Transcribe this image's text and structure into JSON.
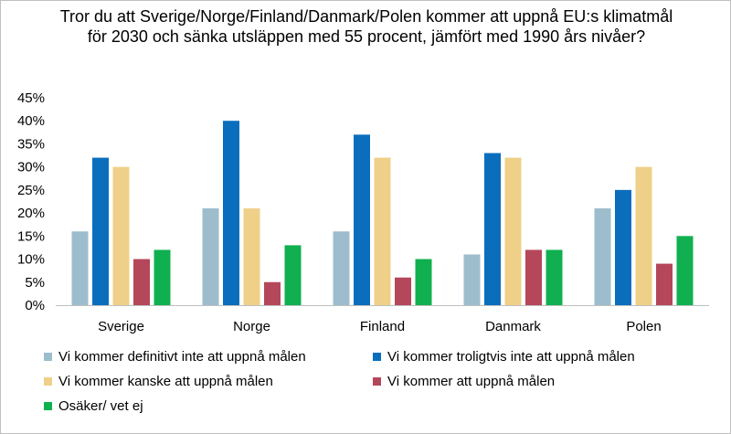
{
  "chart_data": {
    "type": "bar",
    "title": "Tror du att Sverige/Norge/Finland/Danmark/Polen kommer att uppnå EU:s klimatmål för 2030 och sänka utsläppen med 55 procent, jämfört med 1990 års nivåer?",
    "categories": [
      "Sverige",
      "Norge",
      "Finland",
      "Danmark",
      "Polen"
    ],
    "series": [
      {
        "name": "Vi kommer definitivt inte att uppnå målen",
        "color": "#9dbdcc",
        "values": [
          16,
          21,
          16,
          11,
          21
        ]
      },
      {
        "name": "Vi kommer troligtvis inte att uppnå målen",
        "color": "#0a6ebd",
        "values": [
          32,
          40,
          37,
          33,
          25
        ]
      },
      {
        "name": "Vi kommer kanske att uppnå målen",
        "color": "#efd089",
        "values": [
          30,
          21,
          32,
          32,
          30
        ]
      },
      {
        "name": "Vi kommer att uppnå målen",
        "color": "#b5475a",
        "values": [
          10,
          5,
          6,
          12,
          9
        ]
      },
      {
        "name": "Osäker/ vet ej",
        "color": "#10b050",
        "values": [
          12,
          13,
          10,
          12,
          15
        ]
      }
    ],
    "ylim": [
      0,
      45
    ],
    "yticks": [
      0,
      5,
      10,
      15,
      20,
      25,
      30,
      35,
      40,
      45
    ],
    "ytick_labels": [
      "0%",
      "5%",
      "10%",
      "15%",
      "20%",
      "25%",
      "30%",
      "35%",
      "40%",
      "45%"
    ],
    "xlabel": "",
    "ylabel": "",
    "grid": false,
    "legend_position": "bottom"
  }
}
